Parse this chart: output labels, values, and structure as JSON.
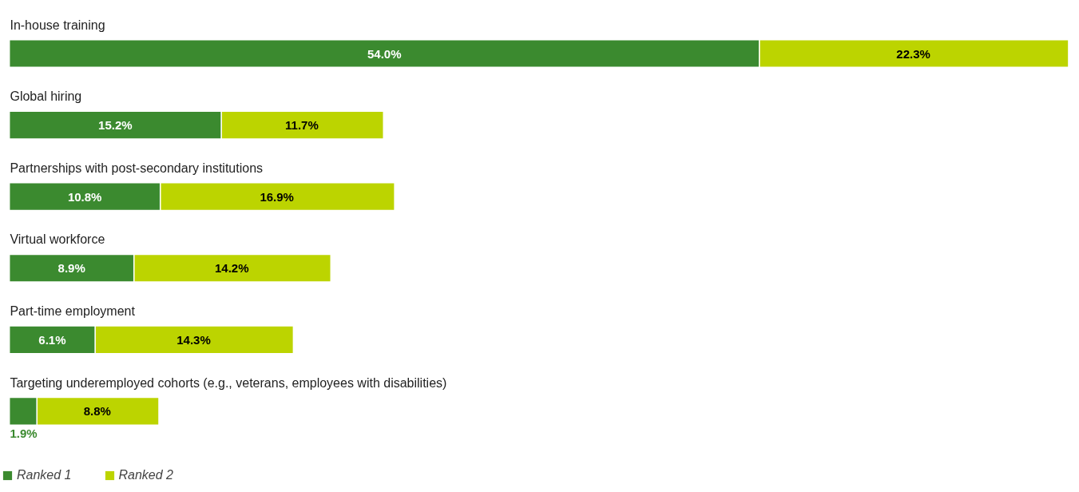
{
  "chart_data": {
    "type": "bar",
    "orientation": "horizontal",
    "stacked": true,
    "legend": "bottom left",
    "grid": false,
    "categories": [
      "In-house training",
      "Global hiring",
      "Partnerships with post-secondary institutions",
      "Virtual workforce",
      "Part-time employment",
      "Targeting underemployed cohorts (e.g., veterans, employees with disabilities)"
    ],
    "series": [
      {
        "name": "Ranked 1",
        "color": "#3b8a2f",
        "values": [
          54.0,
          15.2,
          10.8,
          8.9,
          6.1,
          1.9
        ],
        "value_labels": [
          "54.0%",
          "15.2%",
          "10.8%",
          "8.9%",
          "6.1%",
          "1.9%"
        ]
      },
      {
        "name": "Ranked 2",
        "color": "#bcd400",
        "values": [
          22.3,
          11.7,
          16.9,
          14.2,
          14.3,
          8.8
        ],
        "value_labels": [
          "22.3%",
          "11.7%",
          "16.9%",
          "14.2%",
          "14.3%",
          "8.8%"
        ]
      }
    ]
  }
}
